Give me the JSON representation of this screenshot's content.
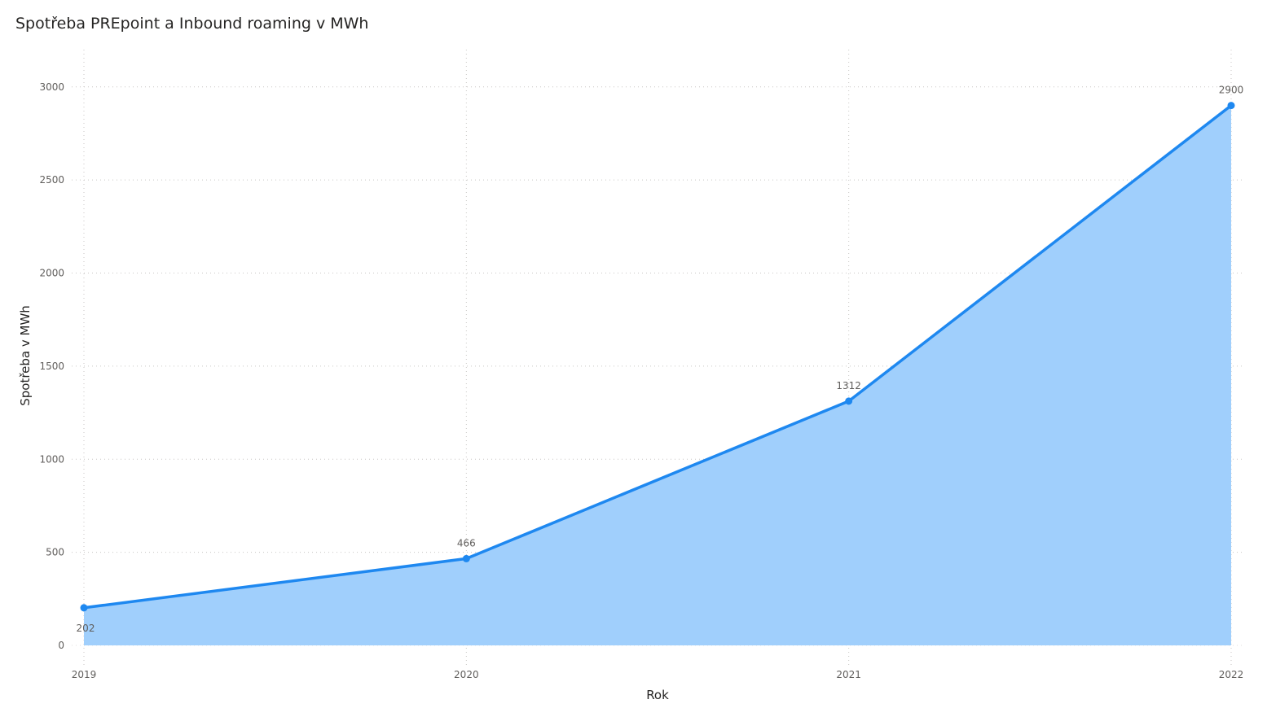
{
  "chart_data": {
    "type": "area",
    "title": "Spotřeba PREpoint a Inbound roaming v MWh",
    "xlabel": "Rok",
    "ylabel": "Spotřeba v MWh",
    "categories": [
      "2019",
      "2020",
      "2021",
      "2022"
    ],
    "series": [
      {
        "values": [
          202,
          466,
          1312,
          2900
        ],
        "data_labels": [
          "202",
          "466",
          "1312",
          "2900"
        ],
        "line_color": "#1e88f0",
        "fill_color": "#a0cffc"
      }
    ],
    "ylim": [
      0,
      3200
    ],
    "yticks": [
      0,
      500,
      1000,
      1500,
      2000,
      2500,
      3000
    ],
    "ytick_labels": [
      "0",
      "500",
      "1000",
      "1500",
      "2000",
      "2500",
      "3000"
    ],
    "grid": true,
    "grid_style": "dotted",
    "legend": "none"
  }
}
